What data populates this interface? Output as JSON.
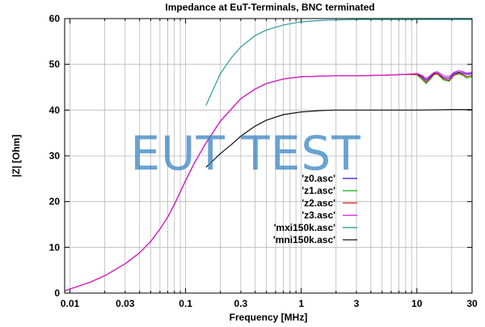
{
  "chart_data": {
    "type": "line",
    "title": "Impedance at EuT-Terminals, BNC terminated",
    "xlabel": "Frequency [MHz]",
    "ylabel": "|Z| [Ohm]",
    "xscale": "log",
    "xlim": [
      0.009,
      30
    ],
    "ylim": [
      0,
      60
    ],
    "x_ticks": [
      {
        "value": 0.01,
        "label": "0.01"
      },
      {
        "value": 0.03,
        "label": "0.03"
      },
      {
        "value": 0.1,
        "label": "0.1"
      },
      {
        "value": 0.3,
        "label": "0.3"
      },
      {
        "value": 1,
        "label": "1"
      },
      {
        "value": 3,
        "label": "3"
      },
      {
        "value": 10,
        "label": "10"
      },
      {
        "value": 30,
        "label": "30"
      }
    ],
    "y_ticks": [
      0,
      10,
      20,
      30,
      40,
      50,
      60
    ],
    "grid": true,
    "legend_position": "lower-right",
    "series": [
      {
        "name": "'z0.asc'",
        "color": "#1f1fcf",
        "points": [
          [
            0.009,
            0.5
          ],
          [
            0.01,
            0.9
          ],
          [
            0.015,
            2.4
          ],
          [
            0.02,
            3.8
          ],
          [
            0.03,
            6.4
          ],
          [
            0.04,
            8.8
          ],
          [
            0.05,
            11.3
          ],
          [
            0.06,
            14.0
          ],
          [
            0.07,
            16.6
          ],
          [
            0.08,
            19.4
          ],
          [
            0.1,
            24.6
          ],
          [
            0.12,
            28.6
          ],
          [
            0.15,
            32.8
          ],
          [
            0.2,
            37.6
          ],
          [
            0.3,
            42.5
          ],
          [
            0.4,
            44.6
          ],
          [
            0.5,
            45.8
          ],
          [
            0.7,
            46.8
          ],
          [
            1,
            47.3
          ],
          [
            2,
            47.5
          ],
          [
            3,
            47.5
          ],
          [
            5,
            47.6
          ],
          [
            8,
            47.8
          ],
          [
            10,
            47.9
          ],
          [
            11,
            47.4
          ],
          [
            12,
            46.5
          ],
          [
            13,
            47.2
          ],
          [
            14,
            48.0
          ],
          [
            15,
            48.1
          ],
          [
            17,
            47.1
          ],
          [
            19,
            46.9
          ],
          [
            21,
            48.0
          ],
          [
            23,
            48.3
          ],
          [
            25,
            48.1
          ],
          [
            27,
            47.8
          ],
          [
            30,
            48.0
          ]
        ]
      },
      {
        "name": "'z1.asc'",
        "color": "#1fb81f",
        "points": [
          [
            0.009,
            0.5
          ],
          [
            0.01,
            0.9
          ],
          [
            0.015,
            2.4
          ],
          [
            0.02,
            3.8
          ],
          [
            0.03,
            6.4
          ],
          [
            0.04,
            8.8
          ],
          [
            0.05,
            11.3
          ],
          [
            0.06,
            14.0
          ],
          [
            0.07,
            16.6
          ],
          [
            0.08,
            19.4
          ],
          [
            0.1,
            24.6
          ],
          [
            0.12,
            28.6
          ],
          [
            0.15,
            32.8
          ],
          [
            0.2,
            37.6
          ],
          [
            0.3,
            42.5
          ],
          [
            0.4,
            44.6
          ],
          [
            0.5,
            45.8
          ],
          [
            0.7,
            46.8
          ],
          [
            1,
            47.3
          ],
          [
            2,
            47.5
          ],
          [
            3,
            47.5
          ],
          [
            5,
            47.6
          ],
          [
            8,
            47.8
          ],
          [
            10,
            47.7
          ],
          [
            11,
            46.8
          ],
          [
            12,
            45.8
          ],
          [
            13,
            46.7
          ],
          [
            14,
            47.7
          ],
          [
            15,
            47.9
          ],
          [
            17,
            46.6
          ],
          [
            19,
            46.3
          ],
          [
            21,
            47.6
          ],
          [
            23,
            47.9
          ],
          [
            25,
            47.6
          ],
          [
            27,
            47.0
          ],
          [
            30,
            47.3
          ]
        ]
      },
      {
        "name": "'z2.asc'",
        "color": "#e01f1f",
        "points": [
          [
            0.009,
            0.5
          ],
          [
            0.01,
            0.9
          ],
          [
            0.015,
            2.4
          ],
          [
            0.02,
            3.8
          ],
          [
            0.03,
            6.4
          ],
          [
            0.04,
            8.8
          ],
          [
            0.05,
            11.3
          ],
          [
            0.06,
            14.0
          ],
          [
            0.07,
            16.6
          ],
          [
            0.08,
            19.4
          ],
          [
            0.1,
            24.6
          ],
          [
            0.12,
            28.6
          ],
          [
            0.15,
            32.8
          ],
          [
            0.2,
            37.6
          ],
          [
            0.3,
            42.5
          ],
          [
            0.4,
            44.6
          ],
          [
            0.5,
            45.8
          ],
          [
            0.7,
            46.8
          ],
          [
            1,
            47.3
          ],
          [
            2,
            47.5
          ],
          [
            3,
            47.5
          ],
          [
            5,
            47.6
          ],
          [
            8,
            47.8
          ],
          [
            10,
            47.8
          ],
          [
            11,
            47.1
          ],
          [
            12,
            46.1
          ],
          [
            13,
            46.9
          ],
          [
            14,
            47.8
          ],
          [
            15,
            48.0
          ],
          [
            17,
            46.8
          ],
          [
            19,
            46.5
          ],
          [
            21,
            47.7
          ],
          [
            23,
            48.1
          ],
          [
            25,
            47.8
          ],
          [
            27,
            47.3
          ],
          [
            30,
            47.6
          ]
        ]
      },
      {
        "name": "'z3.asc'",
        "color": "#e21fe2",
        "points": [
          [
            0.009,
            0.5
          ],
          [
            0.01,
            0.9
          ],
          [
            0.015,
            2.4
          ],
          [
            0.02,
            3.8
          ],
          [
            0.03,
            6.4
          ],
          [
            0.04,
            8.8
          ],
          [
            0.05,
            11.3
          ],
          [
            0.06,
            14.0
          ],
          [
            0.07,
            16.6
          ],
          [
            0.08,
            19.4
          ],
          [
            0.1,
            24.6
          ],
          [
            0.12,
            28.6
          ],
          [
            0.15,
            32.8
          ],
          [
            0.2,
            37.6
          ],
          [
            0.3,
            42.5
          ],
          [
            0.4,
            44.6
          ],
          [
            0.5,
            45.8
          ],
          [
            0.7,
            46.8
          ],
          [
            1,
            47.3
          ],
          [
            2,
            47.5
          ],
          [
            3,
            47.5
          ],
          [
            5,
            47.6
          ],
          [
            8,
            47.8
          ],
          [
            10,
            48.0
          ],
          [
            11,
            47.6
          ],
          [
            12,
            46.9
          ],
          [
            13,
            47.5
          ],
          [
            14,
            48.2
          ],
          [
            15,
            48.4
          ],
          [
            17,
            47.5
          ],
          [
            19,
            47.3
          ],
          [
            21,
            48.3
          ],
          [
            23,
            48.6
          ],
          [
            25,
            48.4
          ],
          [
            27,
            48.1
          ],
          [
            30,
            48.3
          ]
        ]
      },
      {
        "name": "'mxi150k.asc'",
        "color": "#2c9c9c",
        "points": [
          [
            0.15,
            41.0
          ],
          [
            0.2,
            48.0
          ],
          [
            0.25,
            51.5
          ],
          [
            0.3,
            53.8
          ],
          [
            0.4,
            56.3
          ],
          [
            0.5,
            57.5
          ],
          [
            0.7,
            58.6
          ],
          [
            1,
            59.3
          ],
          [
            1.5,
            59.6
          ],
          [
            2,
            59.7
          ],
          [
            3,
            59.8
          ],
          [
            5,
            59.8
          ],
          [
            10,
            59.8
          ],
          [
            20,
            59.8
          ],
          [
            30,
            59.8
          ]
        ]
      },
      {
        "name": "'mni150k.asc'",
        "color": "#111111",
        "points": [
          [
            0.15,
            27.5
          ],
          [
            0.2,
            30.5
          ],
          [
            0.25,
            32.5
          ],
          [
            0.3,
            34.3
          ],
          [
            0.4,
            36.5
          ],
          [
            0.5,
            37.8
          ],
          [
            0.7,
            39.0
          ],
          [
            1,
            39.6
          ],
          [
            1.5,
            39.9
          ],
          [
            2,
            40.0
          ],
          [
            3,
            40.0
          ],
          [
            5,
            40.0
          ],
          [
            10,
            40.0
          ],
          [
            20,
            40.1
          ],
          [
            30,
            40.1
          ]
        ]
      }
    ]
  },
  "watermark": {
    "text": "EUT TEST"
  }
}
